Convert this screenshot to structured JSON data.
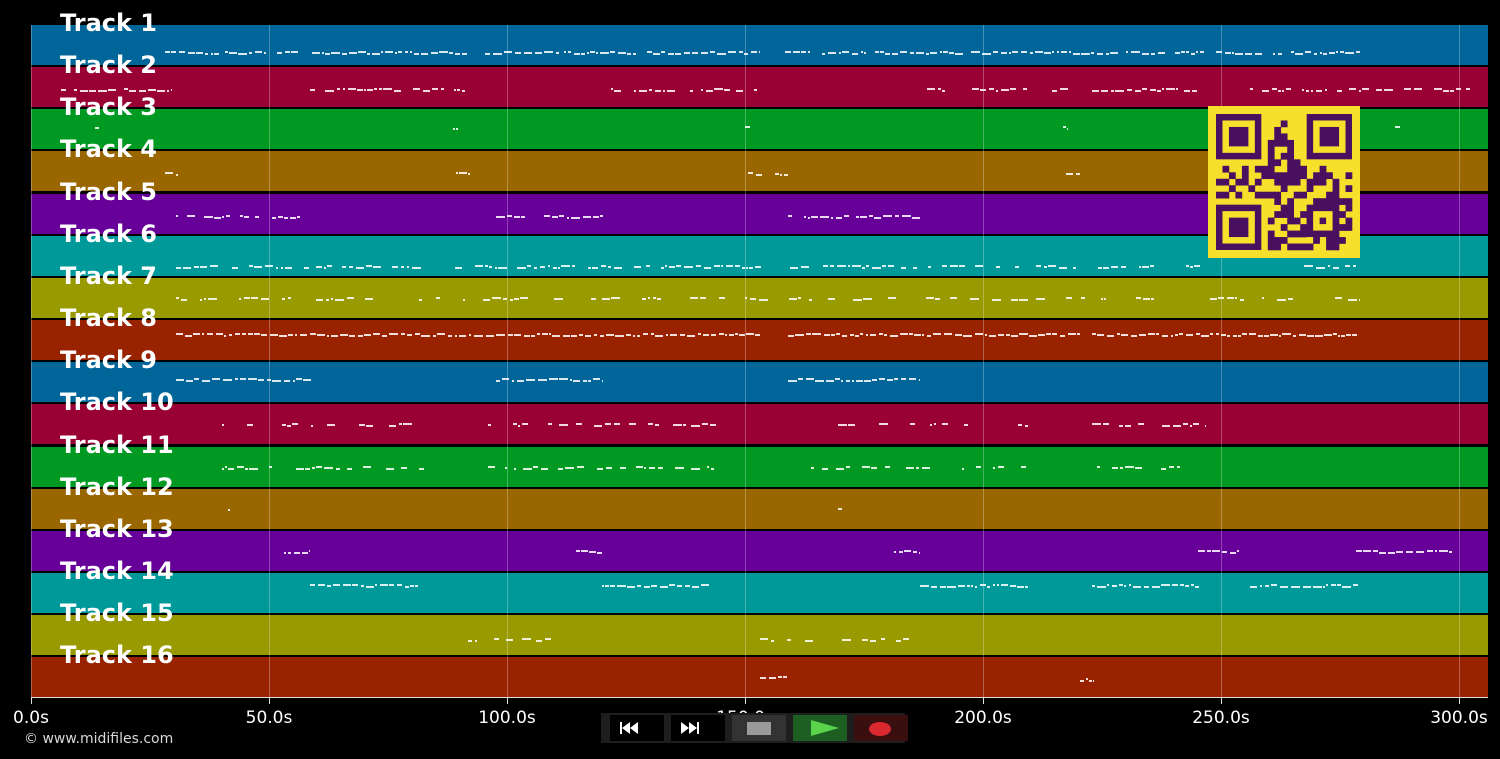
{
  "tracks": [
    {
      "label": "Track 1",
      "color": "#006699"
    },
    {
      "label": "Track 2",
      "color": "#990033"
    },
    {
      "label": "Track 3",
      "color": "#009922"
    },
    {
      "label": "Track 4",
      "color": "#996600"
    },
    {
      "label": "Track 5",
      "color": "#660099"
    },
    {
      "label": "Track 6",
      "color": "#009999"
    },
    {
      "label": "Track 7",
      "color": "#999900"
    },
    {
      "label": "Track 8",
      "color": "#992200"
    },
    {
      "label": "Track 9",
      "color": "#006699"
    },
    {
      "label": "Track 10",
      "color": "#990033"
    },
    {
      "label": "Track 11",
      "color": "#009922"
    },
    {
      "label": "Track 12",
      "color": "#996600"
    },
    {
      "label": "Track 13",
      "color": "#660099"
    },
    {
      "label": "Track 14",
      "color": "#009999"
    },
    {
      "label": "Track 15",
      "color": "#999900"
    },
    {
      "label": "Track 16",
      "color": "#992200"
    }
  ],
  "timeline": {
    "max_seconds": 306,
    "ticks": [
      {
        "label": "0.0s",
        "value": 0
      },
      {
        "label": "50.0s",
        "value": 50
      },
      {
        "label": "100.0s",
        "value": 100
      },
      {
        "label": "150.0s",
        "value": 150
      },
      {
        "label": "200.0s",
        "value": 200
      },
      {
        "label": "250.0s",
        "value": 250
      },
      {
        "label": "300.0s",
        "value": 300
      }
    ]
  },
  "copyright": "© www.midifiles.com",
  "transport": {
    "rewind": "rewind-icon",
    "fast_forward": "fast-forward-icon",
    "stop": "stop-icon",
    "play": "play-icon",
    "record": "record-icon"
  },
  "qr_code": {
    "color": "#f7e02b",
    "module_color": "#4a1060"
  }
}
